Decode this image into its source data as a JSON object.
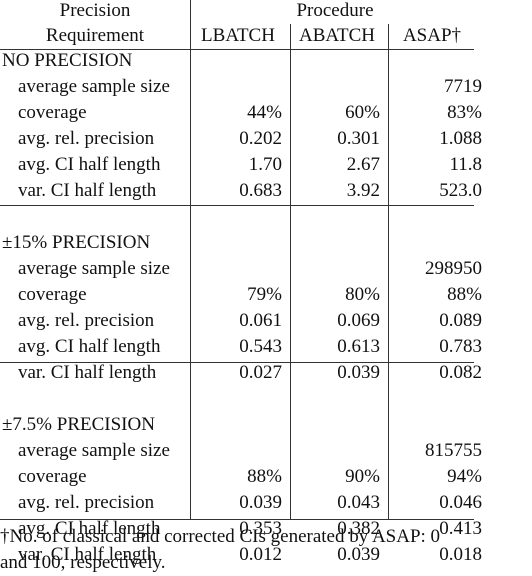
{
  "header": {
    "requirement": [
      "Precision",
      "Requirement"
    ],
    "group": "Procedure",
    "columns": [
      "LBATCH",
      "ABATCH",
      "ASAP†"
    ]
  },
  "sections": [
    {
      "title": "NO PRECISION",
      "rows": [
        {
          "label": "average sample size",
          "cells": [
            null,
            null,
            "7719"
          ]
        },
        {
          "label": "coverage",
          "cells": [
            "44%",
            "60%",
            "83%"
          ]
        },
        {
          "label": "avg. rel. precision",
          "cells": [
            "0.202",
            "0.301",
            "1.088"
          ]
        },
        {
          "label": "avg. CI half length",
          "cells": [
            "1.70",
            "2.67",
            "11.8"
          ]
        },
        {
          "label": "var. CI half length",
          "cells": [
            "0.683",
            "3.92",
            "523.0"
          ]
        }
      ]
    },
    {
      "title": "±15% PRECISION",
      "rows": [
        {
          "label": "average sample size",
          "cells": [
            null,
            null,
            "298950"
          ]
        },
        {
          "label": "coverage",
          "cells": [
            "79%",
            "80%",
            "88%"
          ]
        },
        {
          "label": "avg. rel. precision",
          "cells": [
            "0.061",
            "0.069",
            "0.089"
          ]
        },
        {
          "label": "avg. CI half length",
          "cells": [
            "0.543",
            "0.613",
            "0.783"
          ]
        },
        {
          "label": "var. CI half length",
          "cells": [
            "0.027",
            "0.039",
            "0.082"
          ]
        }
      ]
    },
    {
      "title": "±7.5% PRECISION",
      "rows": [
        {
          "label": "average sample size",
          "cells": [
            null,
            null,
            "815755"
          ]
        },
        {
          "label": "coverage",
          "cells": [
            "88%",
            "90%",
            "94%"
          ]
        },
        {
          "label": "avg. rel. precision",
          "cells": [
            "0.039",
            "0.043",
            "0.046"
          ]
        },
        {
          "label": "avg. CI half length",
          "cells": [
            "0.353",
            "0.382",
            "0.413"
          ]
        },
        {
          "label": "var. CI half length",
          "cells": [
            "0.012",
            "0.039",
            "0.018"
          ]
        }
      ]
    }
  ],
  "footnote": [
    "†No. of classical and corrected CIs generated by ASAP: 0",
    "and 100, respectively."
  ]
}
